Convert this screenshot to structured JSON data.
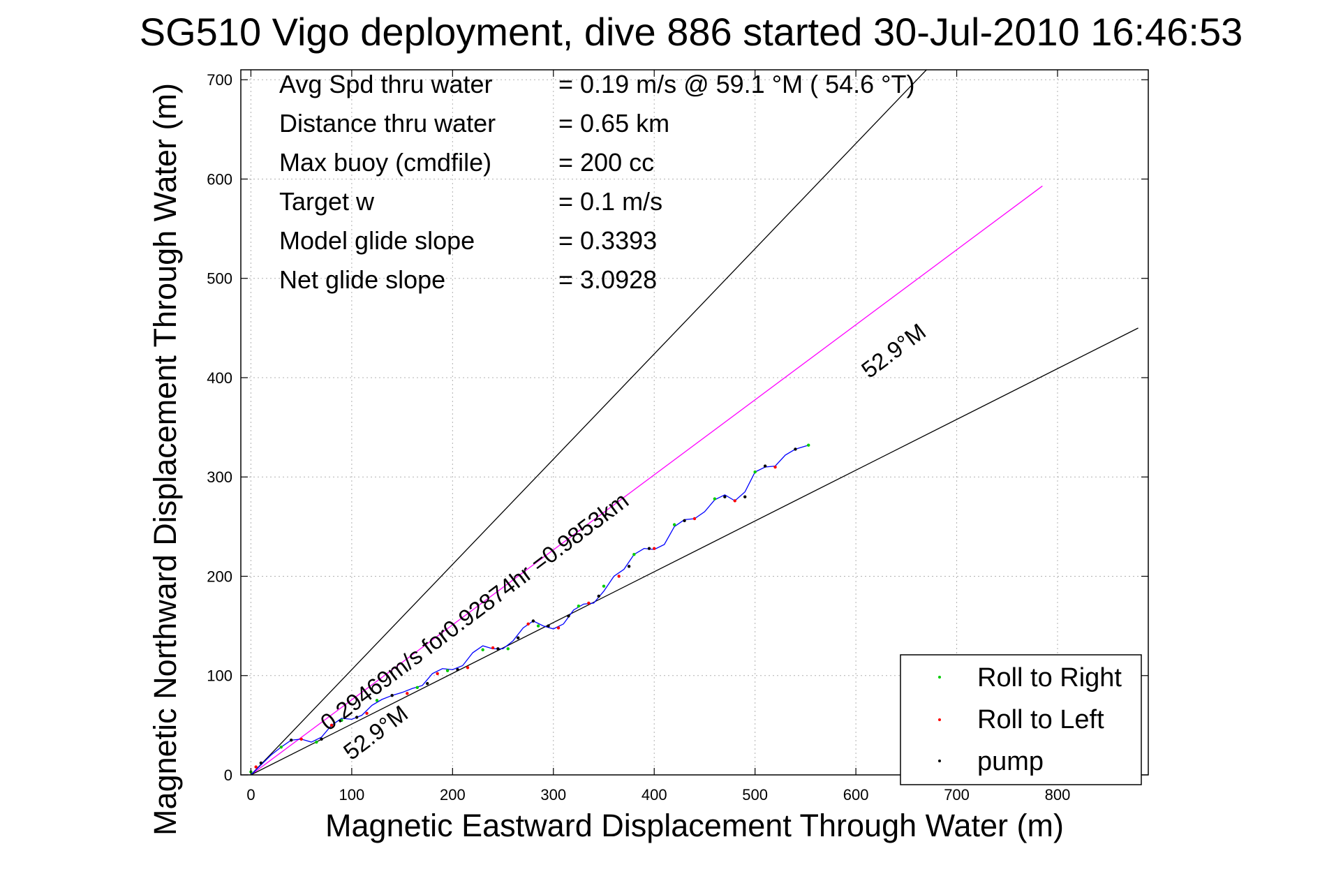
{
  "chart_data": {
    "type": "line",
    "title": "SG510 Vigo deployment, dive 886 started 30-Jul-2010 16:46:53",
    "xlabel": "Magnetic Eastward Displacement Through Water (m)",
    "ylabel": "Magnetic Northward Displacement Through Water (m)",
    "xlim": [
      -10,
      890
    ],
    "ylim": [
      0,
      710
    ],
    "xticks": [
      0,
      100,
      200,
      300,
      400,
      500,
      600,
      700,
      800
    ],
    "yticks": [
      0,
      100,
      200,
      300,
      400,
      500,
      600,
      700
    ],
    "grid": true,
    "legend_position": "bottom-right",
    "info_lines": [
      {
        "label": "Avg Spd thru water",
        "value": "=  0.19 m/s @  59.1 °M ( 54.6 °T)"
      },
      {
        "label": "Distance thru water",
        "value": "=  0.65 km"
      },
      {
        "label": "Max buoy (cmdfile)",
        "value": "= 200 cc"
      },
      {
        "label": "Target w",
        "value": "= 0.1 m/s"
      },
      {
        "label": "Model glide slope",
        "value": "= 0.3393"
      },
      {
        "label": "Net glide slope",
        "value": "= 3.0928"
      }
    ],
    "annotations": {
      "along_track": "0.29469m/s for0.92874hr =0.9853km",
      "heading_upper": "52.9°M",
      "heading_lower": "52.9°M"
    },
    "reference_lines": [
      {
        "x": [
          0,
          670
        ],
        "y": [
          0,
          710
        ],
        "color": "#000000"
      },
      {
        "x": [
          0,
          785
        ],
        "y": [
          0,
          593
        ],
        "color": "#ff00ff"
      },
      {
        "x": [
          0,
          880
        ],
        "y": [
          0,
          450
        ],
        "color": "#000000"
      }
    ],
    "track": {
      "color": "#0000ff",
      "x": [
        0,
        10,
        20,
        30,
        40,
        50,
        60,
        70,
        80,
        90,
        100,
        110,
        120,
        130,
        140,
        150,
        160,
        170,
        180,
        190,
        200,
        210,
        220,
        230,
        240,
        250,
        260,
        270,
        280,
        290,
        300,
        310,
        320,
        330,
        340,
        350,
        360,
        370,
        380,
        390,
        400,
        410,
        420,
        430,
        440,
        450,
        460,
        470,
        480,
        490,
        500,
        510,
        520,
        530,
        540,
        553
      ],
      "y": [
        0,
        10,
        20,
        28,
        35,
        36,
        33,
        38,
        50,
        57,
        56,
        60,
        70,
        76,
        80,
        83,
        87,
        90,
        102,
        107,
        106,
        110,
        123,
        130,
        127,
        127,
        135,
        148,
        155,
        150,
        147,
        152,
        166,
        172,
        173,
        185,
        200,
        207,
        222,
        228,
        227,
        232,
        250,
        257,
        258,
        265,
        277,
        282,
        276,
        285,
        305,
        310,
        311,
        322,
        328,
        332
      ]
    },
    "series": [
      {
        "name": "Roll to Right",
        "color": "#00cc00",
        "marker": "dot",
        "x": [
          0,
          30,
          65,
          90,
          125,
          165,
          195,
          230,
          255,
          285,
          325,
          350,
          380,
          420,
          460,
          500,
          553
        ],
        "y": [
          3,
          28,
          33,
          55,
          75,
          88,
          105,
          126,
          127,
          150,
          170,
          190,
          222,
          252,
          278,
          305,
          332
        ]
      },
      {
        "name": "Roll to Left",
        "color": "#ff0000",
        "marker": "dot",
        "x": [
          5,
          50,
          80,
          115,
          155,
          185,
          215,
          240,
          275,
          305,
          335,
          365,
          400,
          440,
          480,
          520
        ],
        "y": [
          8,
          36,
          50,
          62,
          82,
          102,
          108,
          128,
          152,
          148,
          173,
          200,
          228,
          258,
          276,
          310
        ]
      },
      {
        "name": "pump",
        "color": "#000000",
        "marker": "dot",
        "x": [
          10,
          40,
          70,
          105,
          140,
          175,
          205,
          245,
          265,
          280,
          295,
          315,
          345,
          375,
          395,
          430,
          470,
          490,
          510,
          540
        ],
        "y": [
          12,
          35,
          36,
          58,
          80,
          92,
          106,
          127,
          138,
          155,
          150,
          160,
          180,
          210,
          228,
          256,
          280,
          280,
          311,
          328
        ]
      }
    ]
  }
}
